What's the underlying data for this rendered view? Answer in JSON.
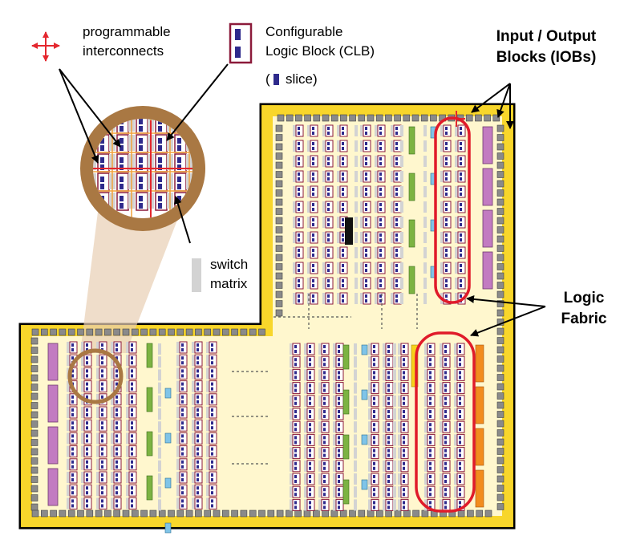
{
  "legend": {
    "interconnect_label_1": "programmable",
    "interconnect_label_2": "interconnects",
    "clb_label_1": "Configurable",
    "clb_label_2": "Logic Block (CLB)",
    "slice_open": "(",
    "slice_label": "slice)",
    "switch_label_1": "switch",
    "switch_label_2": "matrix"
  },
  "callouts": {
    "iob_line_1": "Input / Output",
    "iob_line_2": "Blocks (IOBs)",
    "fabric_line_1": "Logic",
    "fabric_line_2": "Fabric"
  },
  "colors": {
    "chip_fill": "#FFF7CE",
    "chip_border": "#F7D21A",
    "io_pad": "#8A8A8A",
    "clb_border": "#8B1A3A",
    "slice": "#2E2A8C",
    "switch_matrix": "#D3D3D3",
    "interconnect": "#E4272E",
    "magnifier_ring": "#A97843",
    "highlight_ring": "#E01B2A",
    "block_ram": "#C27BC1",
    "dsp": "#7CB342",
    "clock": "#7FC4E8",
    "io_bank": "#F28C1E",
    "black_block": "#111111"
  }
}
